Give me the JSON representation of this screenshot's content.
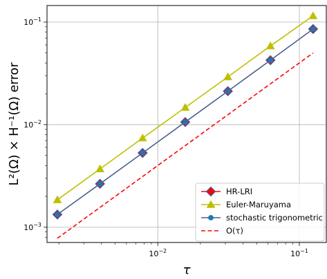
{
  "chart_data": {
    "type": "line",
    "xscale": "log",
    "yscale": "log",
    "xlim": [
      0.00165,
      0.155
    ],
    "ylim": [
      0.00071,
      0.145
    ],
    "grid": true,
    "legend_position": "lower-right",
    "xlabel": "τ",
    "ylabel": "L²(Ω) × H⁻¹(Ω) error",
    "x_ticks": [
      {
        "value": 0.01,
        "base": "10",
        "exp": "−2"
      },
      {
        "value": 0.1,
        "base": "10",
        "exp": "−1"
      }
    ],
    "y_ticks": [
      {
        "value": 0.001,
        "base": "10",
        "exp": "−3"
      },
      {
        "value": 0.01,
        "base": "10",
        "exp": "−2"
      },
      {
        "value": 0.1,
        "base": "10",
        "exp": "−1"
      }
    ],
    "series": [
      {
        "name": "HR-LRI",
        "style": "marker-only",
        "marker": "diamond",
        "color": "#ff0000",
        "edge_color": "#4060a0",
        "x": [
          0.001953125,
          0.00390625,
          0.0078125,
          0.015625,
          0.03125,
          0.0625,
          0.125
        ],
        "y": [
          0.00133,
          0.00265,
          0.0053,
          0.0106,
          0.0212,
          0.0425,
          0.0855
        ]
      },
      {
        "name": "Euler-Maruyama",
        "style": "line-marker",
        "marker": "triangle",
        "color": "#bfbf00",
        "x": [
          0.001953125,
          0.00390625,
          0.0078125,
          0.015625,
          0.03125,
          0.0625,
          0.125
        ],
        "y": [
          0.00185,
          0.0037,
          0.0074,
          0.0147,
          0.0292,
          0.0585,
          0.115
        ]
      },
      {
        "name": "stochastic trigonometric",
        "style": "line-marker",
        "marker": "circle",
        "color": "#1f77b4",
        "line_color": "#4a5f8a",
        "x": [
          0.001953125,
          0.00390625,
          0.0078125,
          0.015625,
          0.03125,
          0.0625,
          0.125
        ],
        "y": [
          0.00133,
          0.00265,
          0.0053,
          0.0106,
          0.0212,
          0.0425,
          0.0855
        ]
      },
      {
        "name": "O(τ)",
        "style": "dashed",
        "color": "#ff0000",
        "x": [
          0.001953125,
          0.125
        ],
        "y": [
          0.00078,
          0.05
        ]
      }
    ]
  }
}
